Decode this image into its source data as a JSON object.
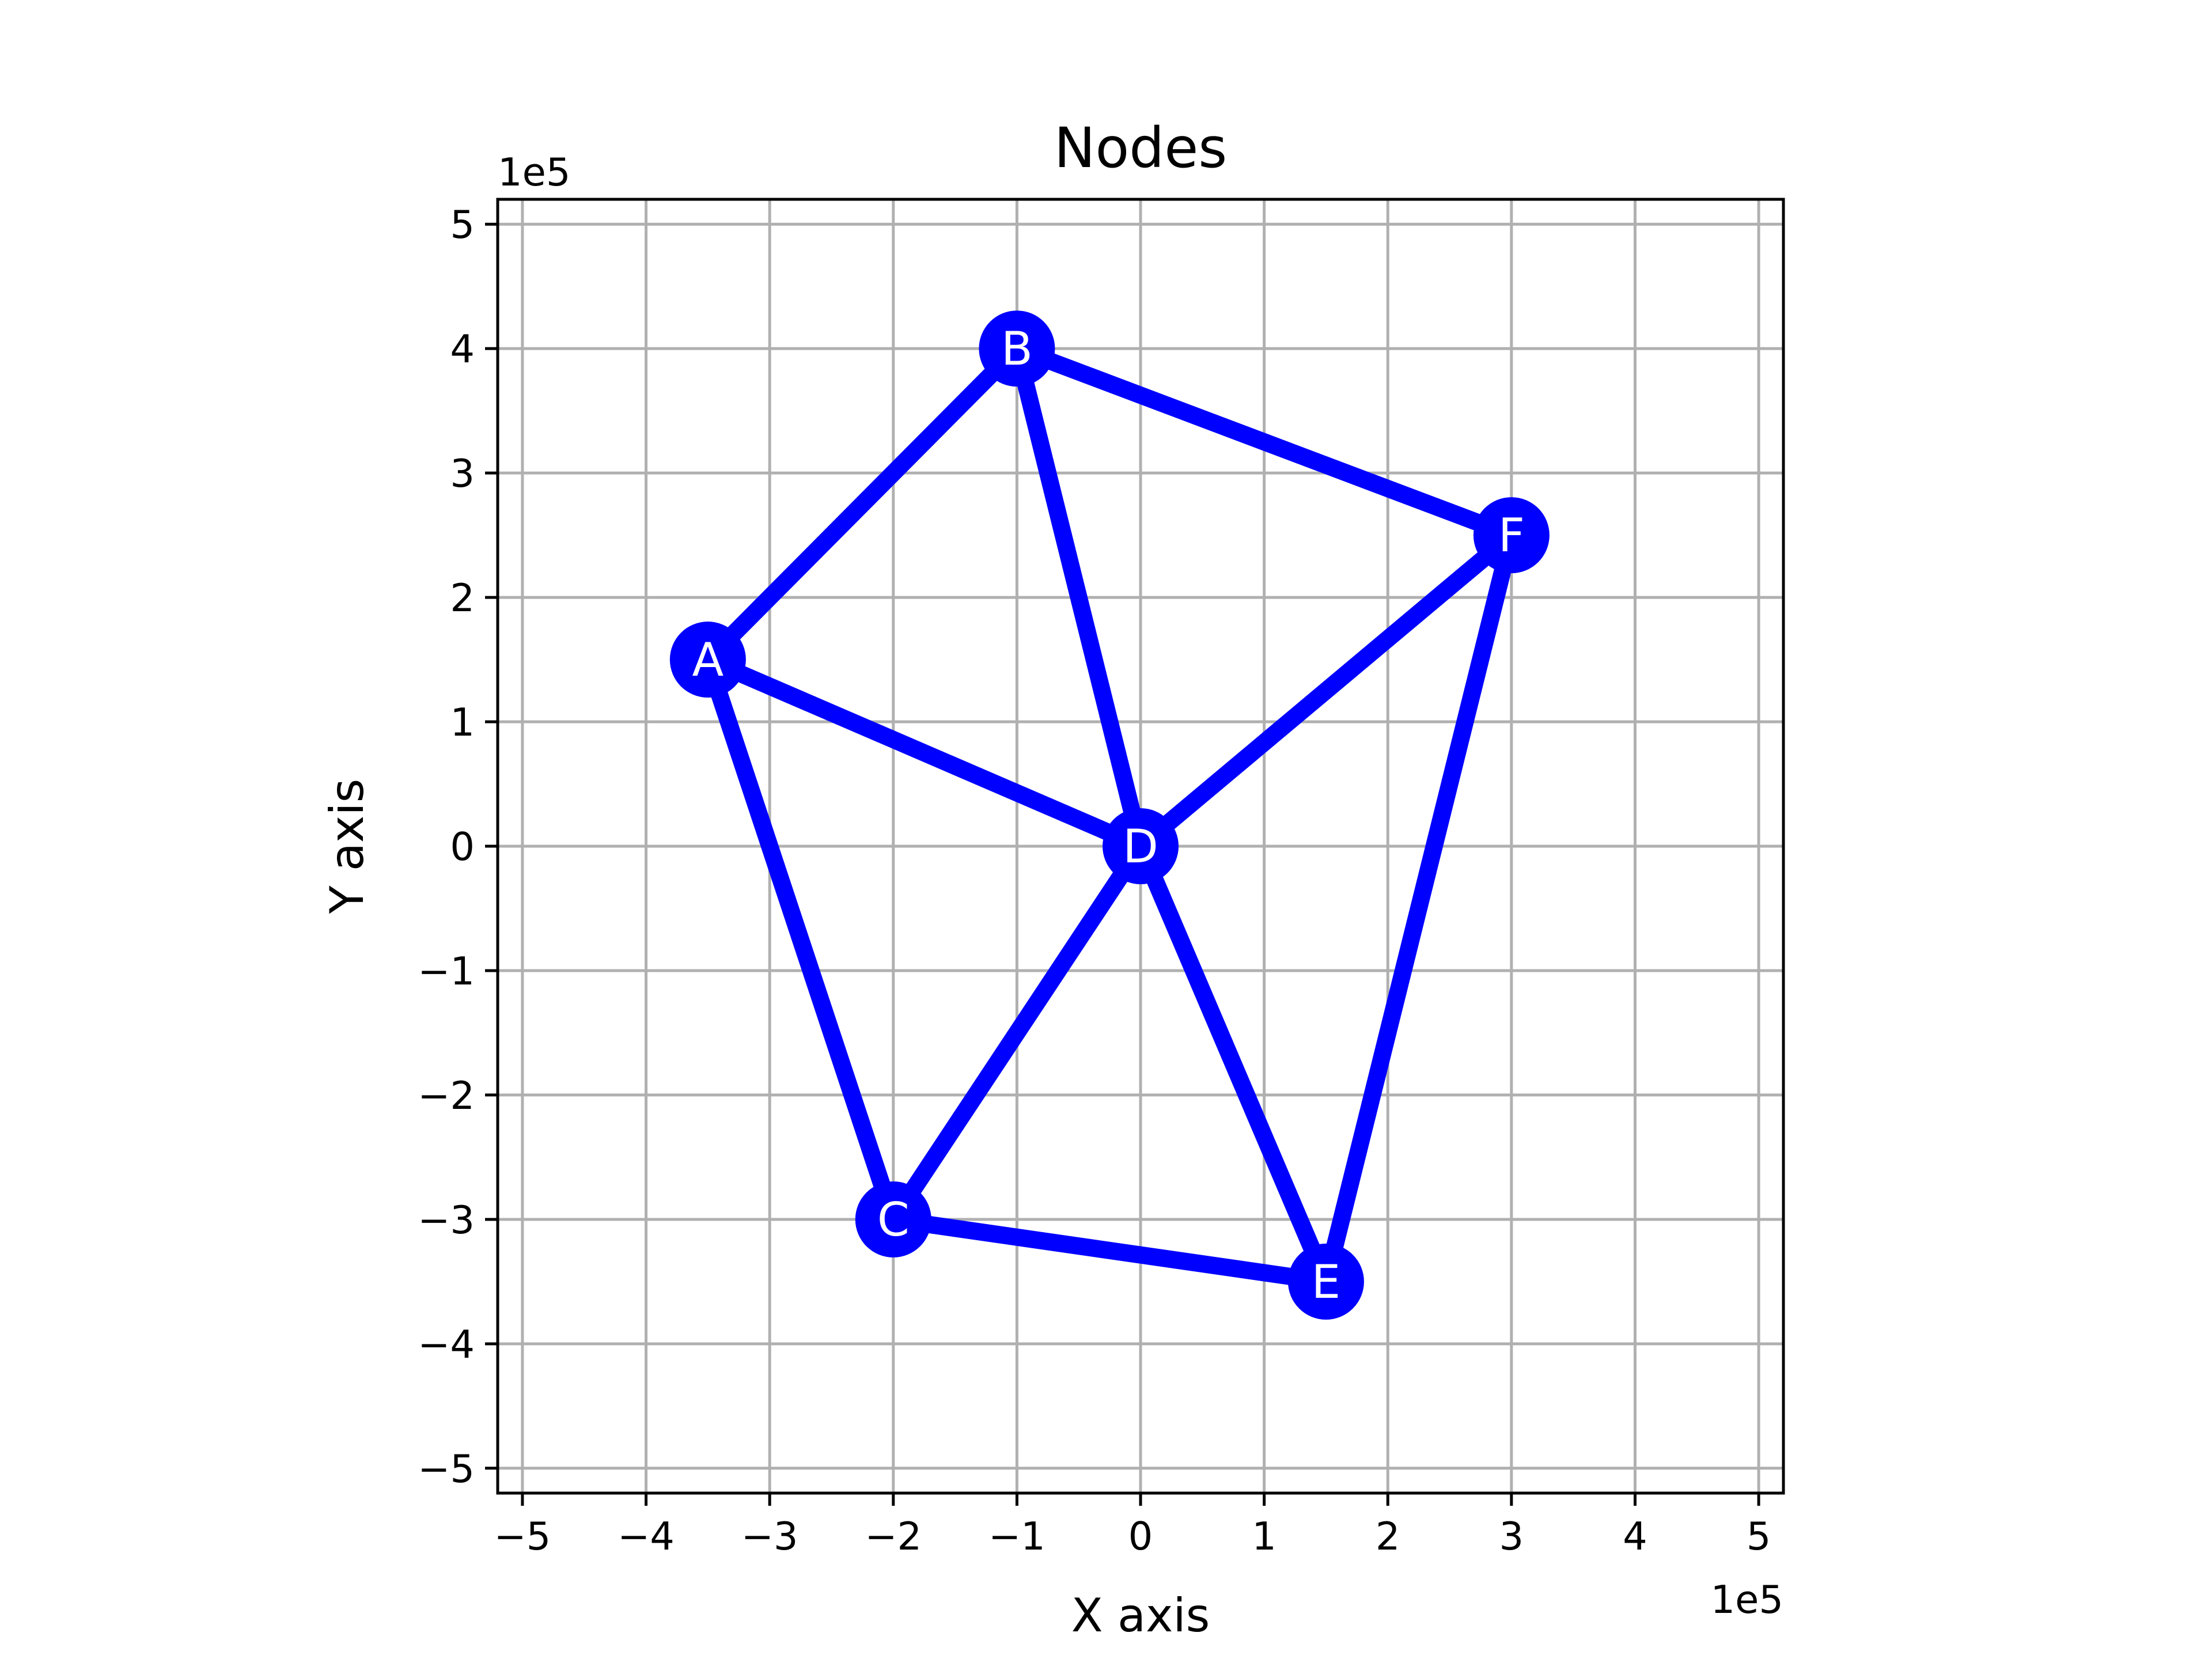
{
  "chart_data": {
    "type": "scatter",
    "title": "Nodes",
    "xlabel": "X axis",
    "ylabel": "Y axis",
    "x_offset_text": "1e5",
    "y_offset_text": "1e5",
    "xlim": [
      -520000,
      520000
    ],
    "ylim": [
      -520000,
      520000
    ],
    "xticks": [
      -500000,
      -400000,
      -300000,
      -200000,
      -100000,
      0,
      100000,
      200000,
      300000,
      400000,
      500000
    ],
    "yticks": [
      -500000,
      -400000,
      -300000,
      -200000,
      -100000,
      0,
      100000,
      200000,
      300000,
      400000,
      500000
    ],
    "xtick_labels": [
      "−5",
      "−4",
      "−3",
      "−2",
      "−1",
      "0",
      "1",
      "2",
      "3",
      "4",
      "5"
    ],
    "ytick_labels": [
      "−5",
      "−4",
      "−3",
      "−2",
      "−1",
      "0",
      "1",
      "2",
      "3",
      "4",
      "5"
    ],
    "grid": true,
    "color": "#0000ff",
    "nodes": [
      {
        "label": "A",
        "x": -350000,
        "y": 150000
      },
      {
        "label": "B",
        "x": -100000,
        "y": 400000
      },
      {
        "label": "C",
        "x": -200000,
        "y": -300000
      },
      {
        "label": "D",
        "x": 0,
        "y": 0
      },
      {
        "label": "E",
        "x": 150000,
        "y": -350000
      },
      {
        "label": "F",
        "x": 300000,
        "y": 250000
      }
    ],
    "edges": [
      [
        "A",
        "B"
      ],
      [
        "A",
        "D"
      ],
      [
        "A",
        "C"
      ],
      [
        "B",
        "D"
      ],
      [
        "B",
        "F"
      ],
      [
        "C",
        "D"
      ],
      [
        "C",
        "E"
      ],
      [
        "D",
        "E"
      ],
      [
        "D",
        "F"
      ],
      [
        "E",
        "F"
      ]
    ]
  }
}
